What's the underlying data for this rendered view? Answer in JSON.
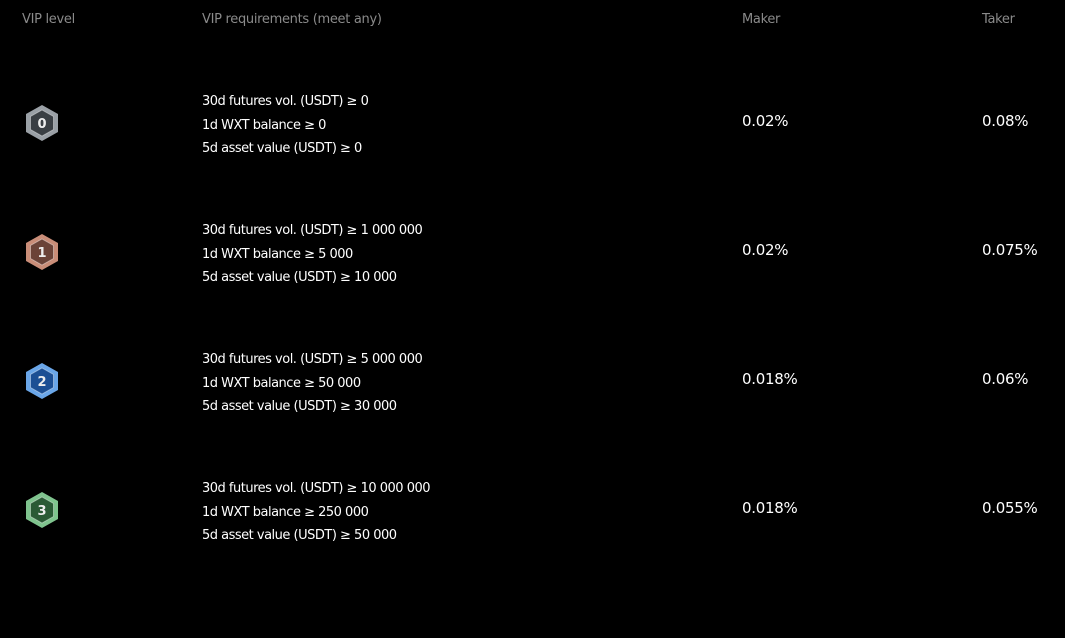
{
  "headers": {
    "level": "VIP level",
    "requirements": "VIP requirements (meet any)",
    "maker": "Maker",
    "taker": "Taker"
  },
  "rows": [
    {
      "level": "0",
      "badge_color": "#9aa0a6",
      "badge_inner": "#3a3f44",
      "reqs": [
        "30d futures vol. (USDT) ≥ 0",
        "1d WXT balance ≥ 0",
        "5d asset value (USDT) ≥ 0"
      ],
      "maker": "0.02%",
      "taker": "0.08%"
    },
    {
      "level": "1",
      "badge_color": "#c98d78",
      "badge_inner": "#6b4338",
      "reqs": [
        "30d futures vol. (USDT) ≥ 1 000 000",
        "1d WXT balance ≥ 5 000",
        "5d asset value (USDT) ≥ 10 000"
      ],
      "maker": "0.02%",
      "taker": "0.075%"
    },
    {
      "level": "2",
      "badge_color": "#6aa6e8",
      "badge_inner": "#1c4f94",
      "reqs": [
        "30d futures vol. (USDT) ≥ 5 000 000",
        "1d WXT balance ≥ 50 000",
        "5d asset value (USDT) ≥ 30 000"
      ],
      "maker": "0.018%",
      "taker": "0.06%"
    },
    {
      "level": "3",
      "badge_color": "#7fc38e",
      "badge_inner": "#2a5a35",
      "reqs": [
        "30d futures vol. (USDT) ≥ 10 000 000",
        "1d WXT balance ≥ 250 000",
        "5d asset value (USDT) ≥ 50 000"
      ],
      "maker": "0.018%",
      "taker": "0.055%"
    }
  ]
}
